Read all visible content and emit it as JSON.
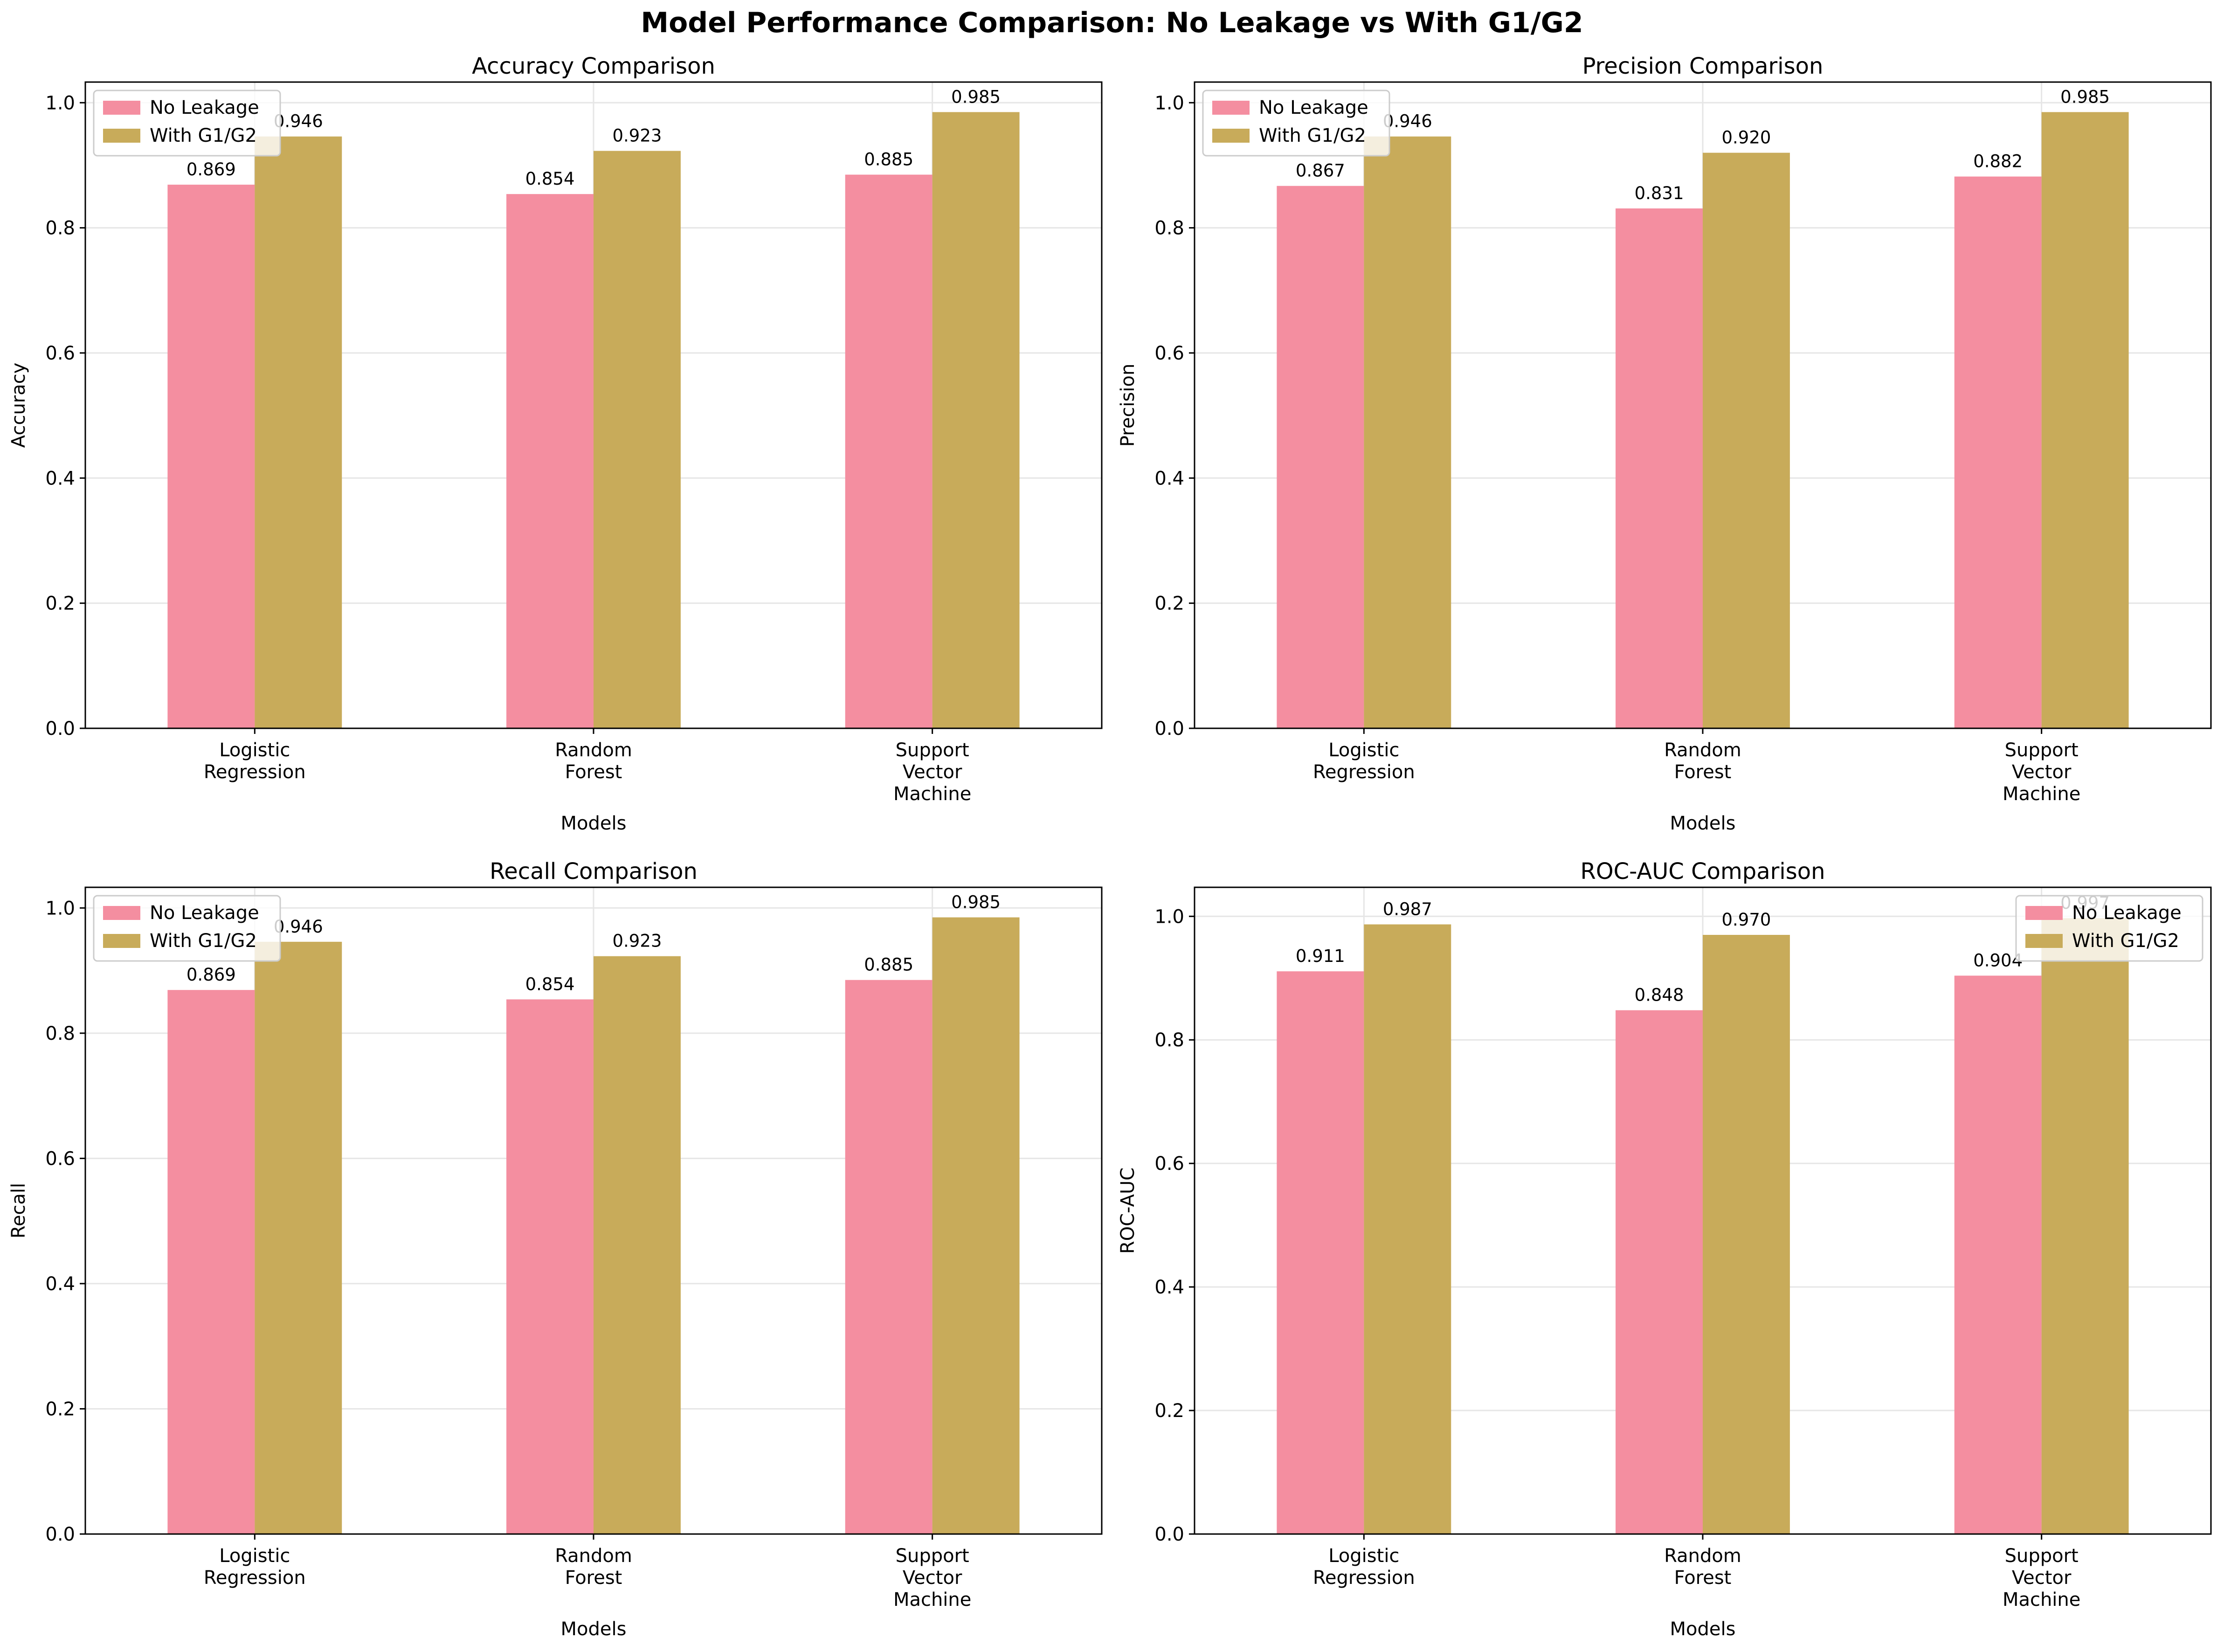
{
  "figure": {
    "title": "Model Performance Comparison: No Leakage vs With G1/G2"
  },
  "colors": {
    "no_leakage": "#f48ea0",
    "with_g1g2": "#c8ab5a",
    "grid": "#e6e6e6",
    "axis": "#000000"
  },
  "chart_data": [
    {
      "type": "bar",
      "title": "Accuracy Comparison",
      "xlabel": "Models",
      "ylabel": "Accuracy",
      "categories": [
        "Logistic\nRegression",
        "Random\nForest",
        "Support\nVector\nMachine"
      ],
      "series": [
        {
          "name": "No Leakage",
          "values": [
            0.869,
            0.854,
            0.885
          ],
          "labels": [
            "0.869",
            "0.854",
            "0.885"
          ]
        },
        {
          "name": "With G1/G2",
          "values": [
            0.946,
            0.923,
            0.985
          ],
          "labels": [
            "0.946",
            "0.923",
            "0.985"
          ]
        }
      ],
      "ylim": [
        0,
        1.033
      ],
      "yticks": [
        "0.0",
        "0.2",
        "0.4",
        "0.6",
        "0.8",
        "1.0"
      ],
      "grid": true,
      "legend": "upper left"
    },
    {
      "type": "bar",
      "title": "Precision Comparison",
      "xlabel": "Models",
      "ylabel": "Precision",
      "categories": [
        "Logistic\nRegression",
        "Random\nForest",
        "Support\nVector\nMachine"
      ],
      "series": [
        {
          "name": "No Leakage",
          "values": [
            0.867,
            0.831,
            0.882
          ],
          "labels": [
            "0.867",
            "0.831",
            "0.882"
          ]
        },
        {
          "name": "With G1/G2",
          "values": [
            0.946,
            0.92,
            0.985
          ],
          "labels": [
            "0.946",
            "0.920",
            "0.985"
          ]
        }
      ],
      "ylim": [
        0,
        1.033
      ],
      "yticks": [
        "0.0",
        "0.2",
        "0.4",
        "0.6",
        "0.8",
        "1.0"
      ],
      "grid": true,
      "legend": "upper left"
    },
    {
      "type": "bar",
      "title": "Recall Comparison",
      "xlabel": "Models",
      "ylabel": "Recall",
      "categories": [
        "Logistic\nRegression",
        "Random\nForest",
        "Support\nVector\nMachine"
      ],
      "series": [
        {
          "name": "No Leakage",
          "values": [
            0.869,
            0.854,
            0.885
          ],
          "labels": [
            "0.869",
            "0.854",
            "0.885"
          ]
        },
        {
          "name": "With G1/G2",
          "values": [
            0.946,
            0.923,
            0.985
          ],
          "labels": [
            "0.946",
            "0.923",
            "0.985"
          ]
        }
      ],
      "ylim": [
        0,
        1.033
      ],
      "yticks": [
        "0.0",
        "0.2",
        "0.4",
        "0.6",
        "0.8",
        "1.0"
      ],
      "grid": true,
      "legend": "upper left"
    },
    {
      "type": "bar",
      "title": "ROC-AUC Comparison",
      "xlabel": "Models",
      "ylabel": "ROC-AUC",
      "categories": [
        "Logistic\nRegression",
        "Random\nForest",
        "Support\nVector\nMachine"
      ],
      "series": [
        {
          "name": "No Leakage",
          "values": [
            0.911,
            0.848,
            0.904
          ],
          "labels": [
            "0.911",
            "0.848",
            "0.904"
          ]
        },
        {
          "name": "With G1/G2",
          "values": [
            0.987,
            0.97,
            0.997
          ],
          "labels": [
            "0.987",
            "0.970",
            "0.997"
          ]
        }
      ],
      "ylim": [
        0,
        1.047
      ],
      "yticks": [
        "0.0",
        "0.2",
        "0.4",
        "0.6",
        "0.8",
        "1.0"
      ],
      "grid": true,
      "legend": "upper right"
    }
  ]
}
